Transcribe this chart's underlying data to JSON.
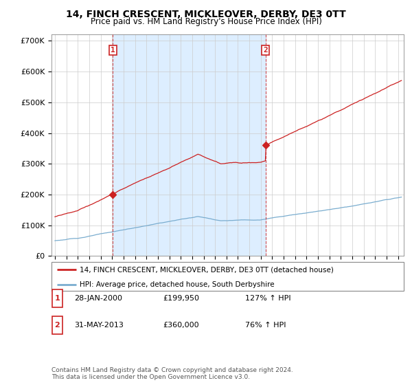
{
  "title": "14, FINCH CRESCENT, MICKLEOVER, DERBY, DE3 0TT",
  "subtitle": "Price paid vs. HM Land Registry's House Price Index (HPI)",
  "legend_line1": "14, FINCH CRESCENT, MICKLEOVER, DERBY, DE3 0TT (detached house)",
  "legend_line2": "HPI: Average price, detached house, South Derbyshire",
  "footnote": "Contains HM Land Registry data © Crown copyright and database right 2024.\nThis data is licensed under the Open Government Licence v3.0.",
  "sale1_label": "1",
  "sale1_date": "28-JAN-2000",
  "sale1_price": "£199,950",
  "sale1_hpi": "127% ↑ HPI",
  "sale1_x": 2000.07,
  "sale1_y": 199950,
  "sale2_label": "2",
  "sale2_date": "31-MAY-2013",
  "sale2_price": "£360,000",
  "sale2_hpi": "76% ↑ HPI",
  "sale2_x": 2013.42,
  "sale2_y": 360000,
  "hpi_color": "#7aadcf",
  "price_color": "#cc2222",
  "shade_color": "#ddeeff",
  "ylim": [
    0,
    720000
  ],
  "xlim_start": 1994.7,
  "xlim_end": 2025.5,
  "yticks": [
    0,
    100000,
    200000,
    300000,
    400000,
    500000,
    600000,
    700000
  ],
  "ytick_labels": [
    "£0",
    "£100K",
    "£200K",
    "£300K",
    "£400K",
    "£500K",
    "£600K",
    "£700K"
  ],
  "xticks": [
    1995,
    1996,
    1997,
    1998,
    1999,
    2000,
    2001,
    2002,
    2003,
    2004,
    2005,
    2006,
    2007,
    2008,
    2009,
    2010,
    2011,
    2012,
    2013,
    2014,
    2015,
    2016,
    2017,
    2018,
    2019,
    2020,
    2021,
    2022,
    2023,
    2024,
    2025
  ]
}
